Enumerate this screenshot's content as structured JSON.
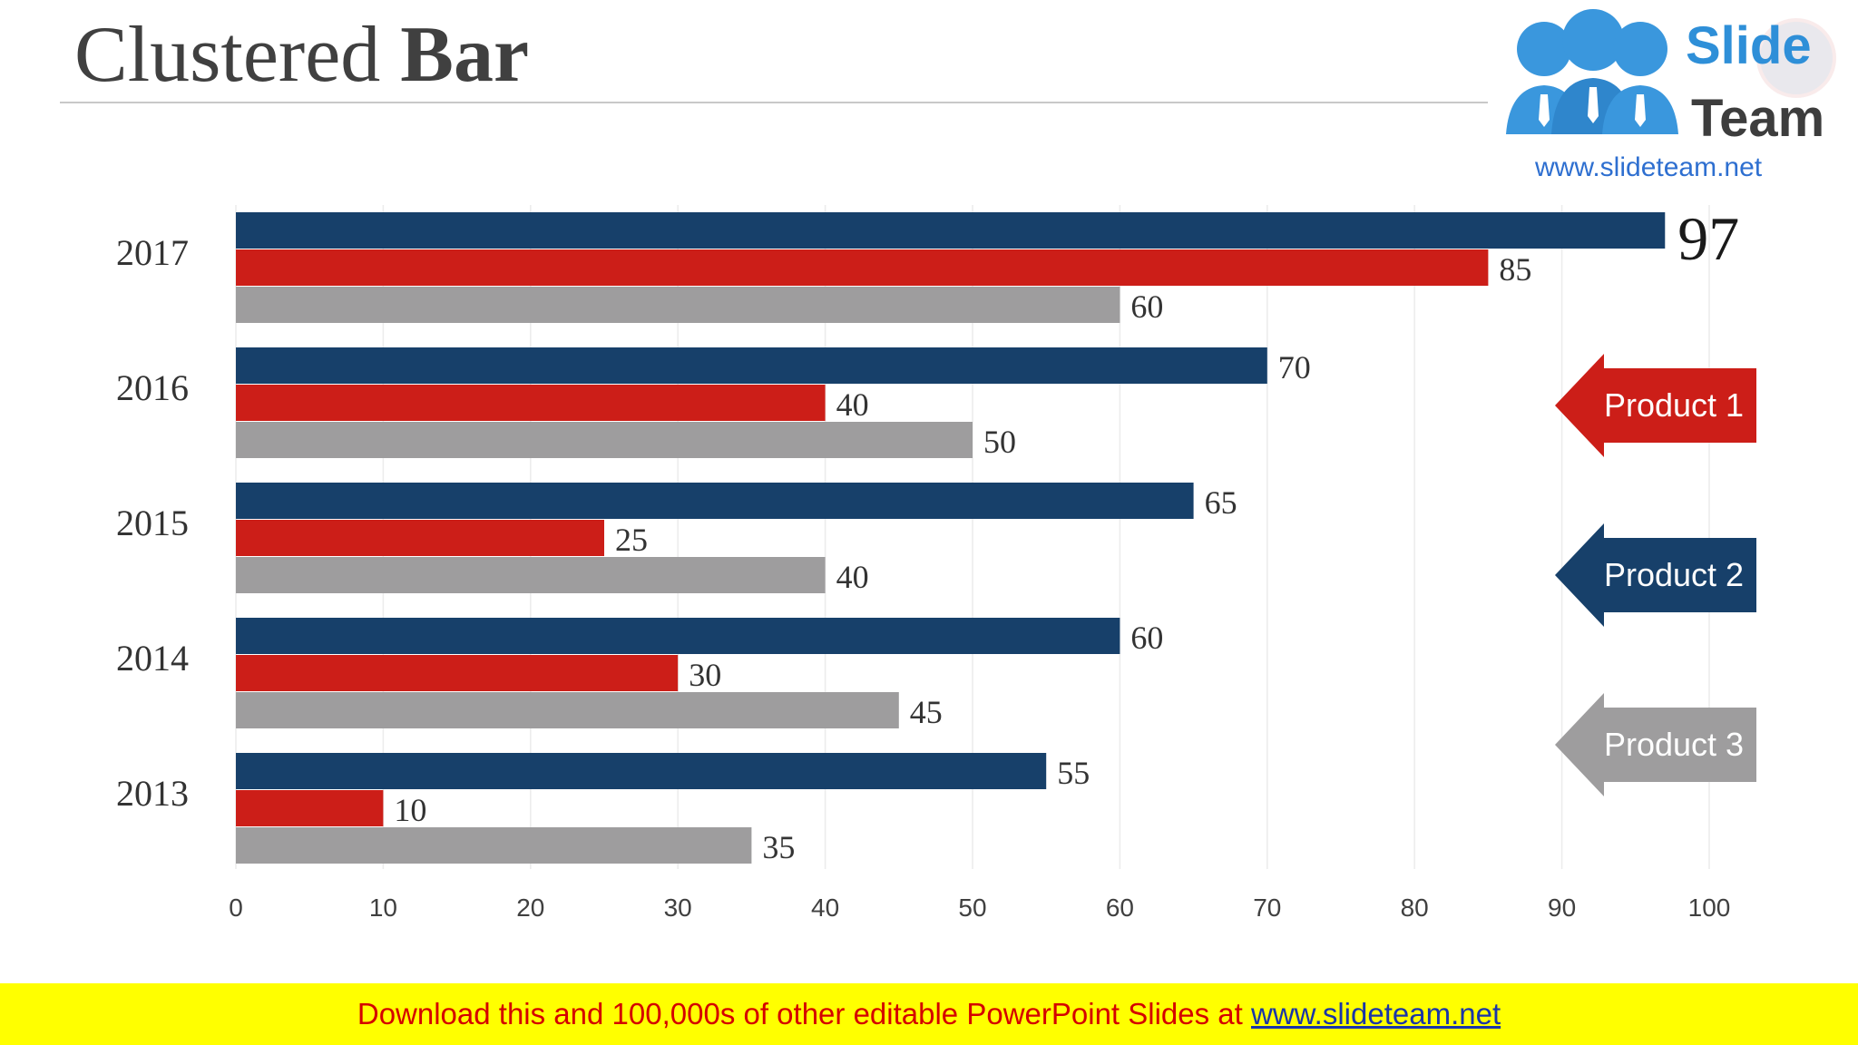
{
  "slide": {
    "title_light": "Clustered ",
    "title_bold": "Bar"
  },
  "logo": {
    "word1": "Slide",
    "word2": "Team",
    "url": "www.slideteam.net",
    "colors": {
      "blue": "#2e8fd8",
      "dark": "#3d3d3d",
      "link": "#2e6fd0"
    }
  },
  "legend": [
    {
      "label": "Product 1",
      "color": "#cc1e18"
    },
    {
      "label": "Product 2",
      "color": "#17406a"
    },
    {
      "label": "Product 3",
      "color": "#9e9d9e"
    }
  ],
  "footer": {
    "text": "Download this and 100,000s of other editable PowerPoint Slides at ",
    "link": "www.slideteam.net"
  },
  "chart_data": {
    "type": "bar",
    "orientation": "horizontal",
    "categories": [
      "2017",
      "2016",
      "2015",
      "2014",
      "2013"
    ],
    "series": [
      {
        "color": "#17406a",
        "values": [
          97,
          70,
          65,
          60,
          55
        ]
      },
      {
        "color": "#cc1e18",
        "values": [
          85,
          40,
          25,
          30,
          10
        ]
      },
      {
        "color": "#9e9d9e",
        "values": [
          60,
          50,
          40,
          45,
          35
        ]
      }
    ],
    "xlim": [
      0,
      100
    ],
    "xticks": [
      0,
      10,
      20,
      30,
      40,
      50,
      60,
      70,
      80,
      90,
      100
    ],
    "grid": true,
    "data_labels": true,
    "highlight": {
      "category": "2017",
      "series_index": 0,
      "value": 97
    }
  }
}
